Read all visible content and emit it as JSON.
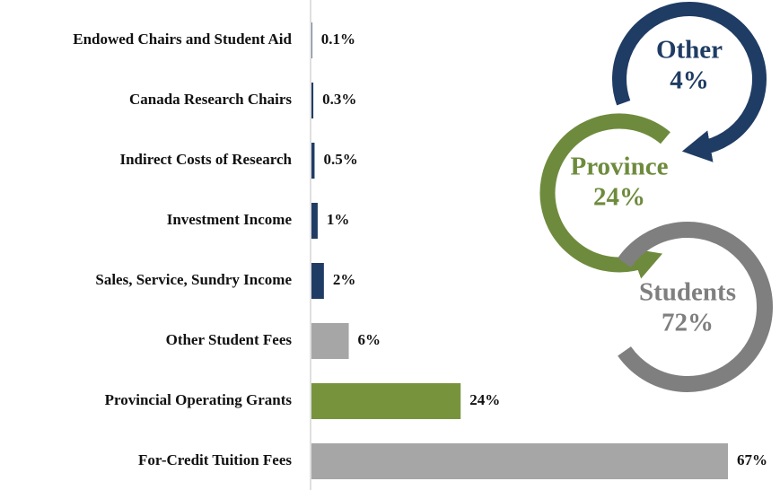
{
  "chart_data": [
    {
      "type": "bar",
      "categories": [
        "Endowed Chairs and Student Aid",
        "Canada Research Chairs",
        "Indirect Costs of Research",
        "Investment Income",
        "Sales, Service, Sundry Income",
        "Other Student Fees",
        "Provincial Operating Grants",
        "For-Credit Tuition Fees"
      ],
      "values": [
        0.1,
        0.3,
        0.5,
        1,
        2,
        6,
        24,
        67
      ],
      "value_labels": [
        "0.1%",
        "0.3%",
        "0.5%",
        "1%",
        "2%",
        "6%",
        "24%",
        "67%"
      ],
      "colors": [
        "#1f3c64",
        "#1f3c64",
        "#1f3c64",
        "#1f3c64",
        "#1f3c64",
        "#a6a6a6",
        "#77933c",
        "#a6a6a6"
      ]
    },
    {
      "type": "ring",
      "categories": [
        "Other",
        "Province",
        "Students"
      ],
      "values": [
        4,
        24,
        72
      ],
      "value_labels": [
        "4%",
        "24%",
        "72%"
      ],
      "colors": [
        "#1f3c64",
        "#6e8b3d",
        "#7f7f7f"
      ]
    }
  ]
}
